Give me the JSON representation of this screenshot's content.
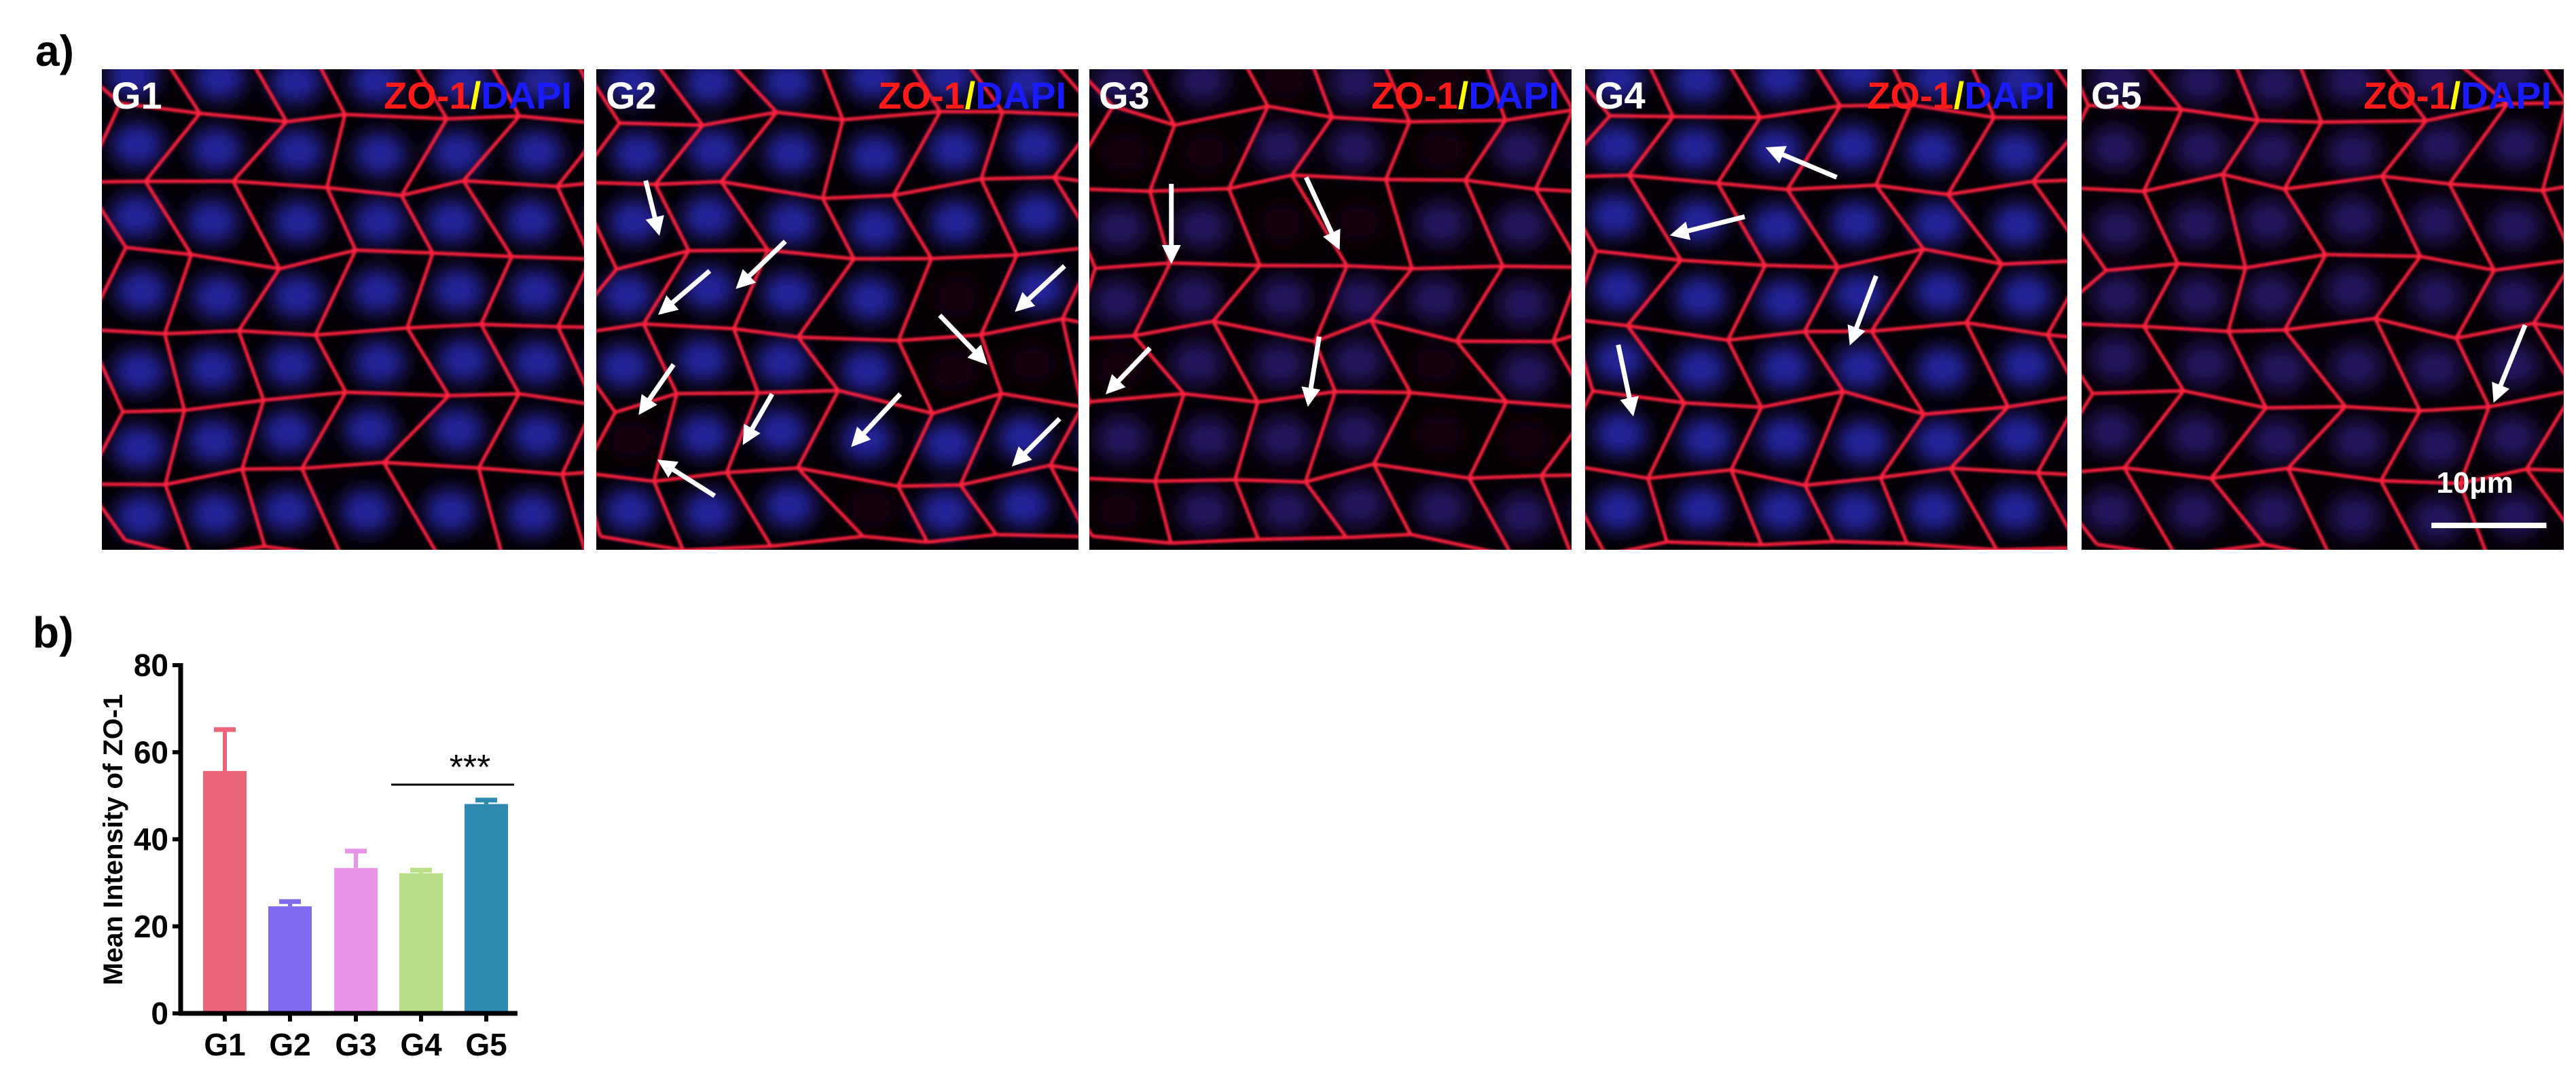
{
  "panel_a": {
    "label": "a)",
    "stain": {
      "red": "ZO-1",
      "sep": "/",
      "blue": "DAPI"
    },
    "groups": [
      "G1",
      "G2",
      "G3",
      "G4",
      "G5"
    ],
    "scale_bar": "10µm",
    "colors": {
      "zo1": "#ff1a1a",
      "sep": "#ffff00",
      "dapi": "#1a1aff",
      "background": "#000000"
    }
  },
  "panel_b": {
    "label": "b)"
  },
  "chart_data": {
    "type": "bar",
    "title": "",
    "xlabel": "",
    "ylabel": "Mean Intensity of ZO-1",
    "categories": [
      "G1",
      "G2",
      "G3",
      "G4",
      "G5"
    ],
    "values": [
      55.7,
      24.6,
      33.4,
      32.2,
      48.1
    ],
    "error_upper": [
      65.2,
      25.7,
      37.3,
      32.9,
      49.0
    ],
    "colors": [
      "#ec6479",
      "#7f6bef",
      "#e994e9",
      "#bbdf88",
      "#2e8aae"
    ],
    "ylim": [
      0,
      80
    ],
    "yticks": [
      0,
      20,
      40,
      60,
      80
    ],
    "grid": false,
    "annotations": [
      {
        "text": "***",
        "from": "G4",
        "to": "G5"
      }
    ]
  }
}
